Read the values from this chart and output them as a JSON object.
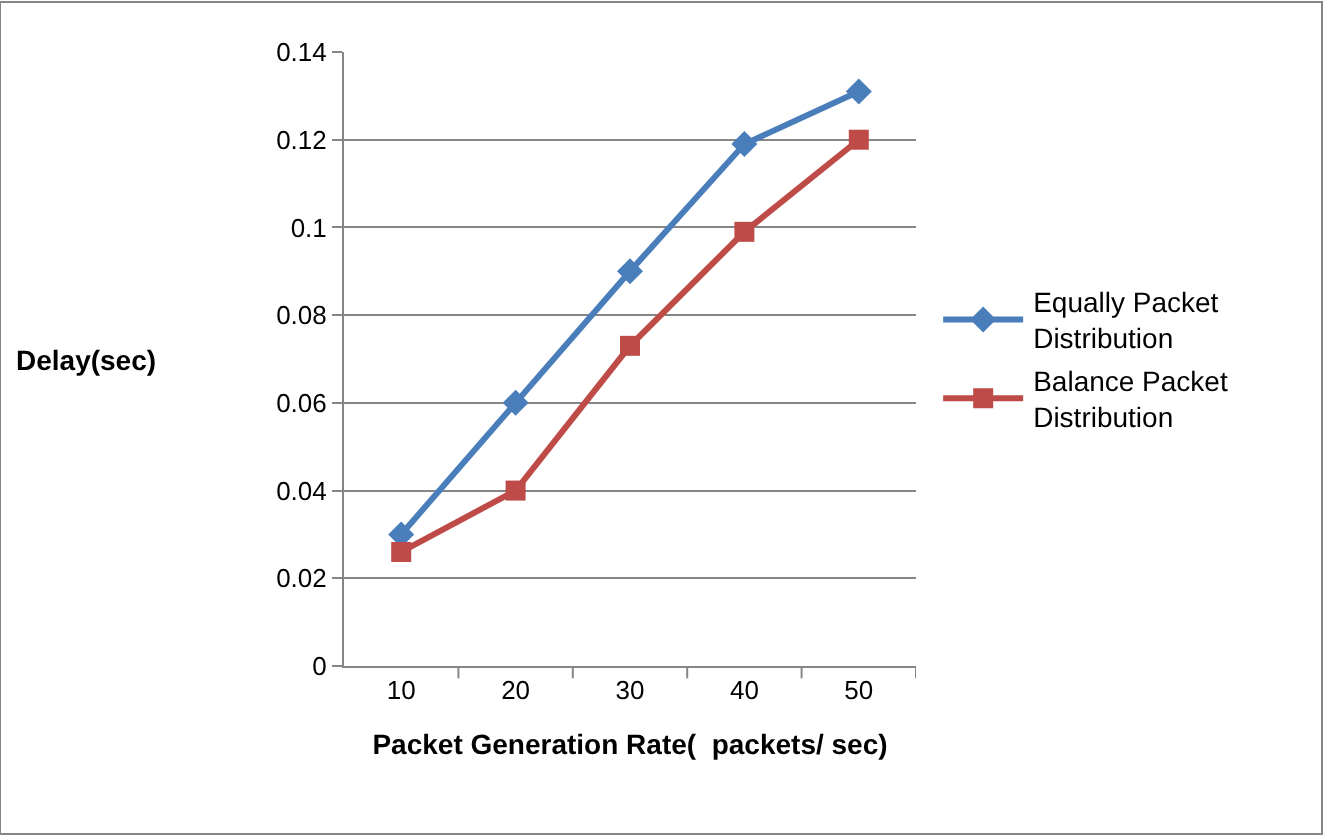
{
  "chart_data": {
    "type": "line",
    "xlabel": "Packet Generation Rate(  packets/ sec)",
    "ylabel": "Delay(sec)",
    "categories": [
      "10",
      "20",
      "30",
      "40",
      "50"
    ],
    "series": [
      {
        "name": "Equally Packet Distribution",
        "color": "#4a7ebb",
        "marker": "diamond",
        "values": [
          0.03,
          0.06,
          0.09,
          0.119,
          0.131
        ]
      },
      {
        "name": "Balance Packet Distribution",
        "color": "#be4b48",
        "marker": "square",
        "values": [
          0.026,
          0.04,
          0.073,
          0.099,
          0.12
        ]
      }
    ],
    "ylim": [
      0,
      0.14
    ],
    "yticks": [
      0,
      0.02,
      0.04,
      0.06,
      0.08,
      0.1,
      0.12,
      0.14
    ],
    "grid": "y",
    "legend": "right"
  }
}
